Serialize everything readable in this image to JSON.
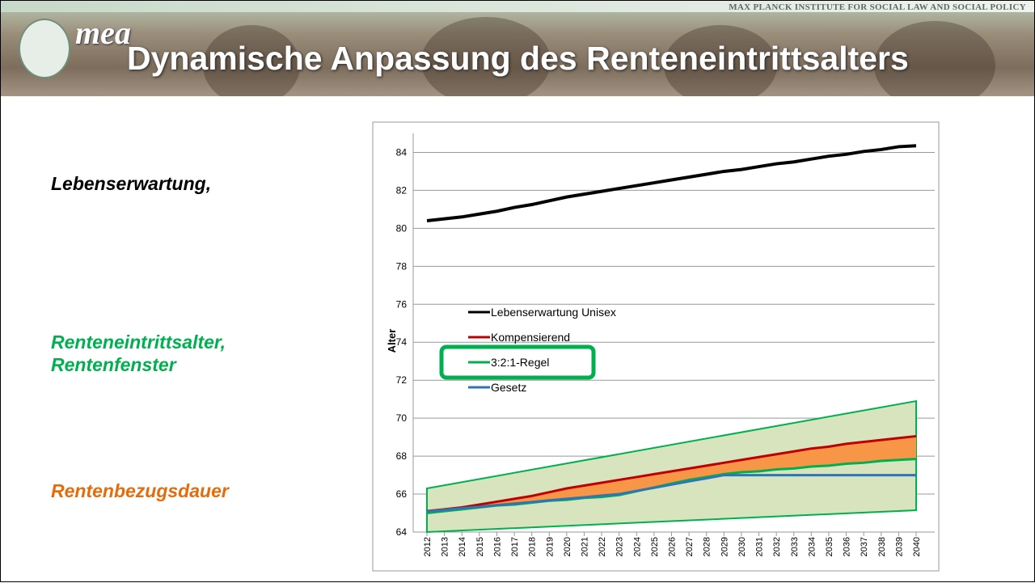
{
  "header": {
    "institute": "MAX PLANCK INSTITUTE FOR SOCIAL LAW AND SOCIAL POLICY",
    "logo": "mea",
    "title": "Dynamische Anpassung des Renteneintrittsalters"
  },
  "labels": [
    {
      "text": "Lebenserwartung,",
      "color": "#000000"
    },
    {
      "text": "Renteneintrittsalter,\nRentenfenster",
      "color": "#00b050"
    },
    {
      "text": "Rentenbezugsdauer",
      "color": "#e46c0a"
    }
  ],
  "chart_data": {
    "type": "line",
    "y_label": "Alter",
    "x": [
      2012,
      2013,
      2014,
      2015,
      2016,
      2017,
      2018,
      2019,
      2020,
      2021,
      2022,
      2023,
      2024,
      2025,
      2026,
      2027,
      2028,
      2029,
      2030,
      2031,
      2032,
      2033,
      2034,
      2035,
      2036,
      2037,
      2038,
      2039,
      2040
    ],
    "xticks": [
      2012,
      2013,
      2014,
      2015,
      2016,
      2017,
      2018,
      2019,
      2020,
      2021,
      2022,
      2023,
      2024,
      2025,
      2026,
      2027,
      2028,
      2029,
      2030,
      2031,
      2032,
      2033,
      2034,
      2035,
      2036,
      2037,
      2038,
      2039,
      2040
    ],
    "ylim": [
      64,
      85
    ],
    "yticks": [
      64,
      66,
      68,
      70,
      72,
      74,
      76,
      78,
      80,
      82,
      84
    ],
    "grid": true,
    "legend": "left",
    "series": [
      {
        "name": "Lebenserwartung Unisex",
        "color": "#000000",
        "values": [
          80.4,
          80.5,
          80.6,
          80.75,
          80.9,
          81.1,
          81.25,
          81.45,
          81.65,
          81.8,
          81.95,
          82.1,
          82.25,
          82.4,
          82.55,
          82.7,
          82.85,
          83.0,
          83.1,
          83.25,
          83.4,
          83.5,
          83.65,
          83.8,
          83.9,
          84.05,
          84.15,
          84.3,
          84.35
        ]
      },
      {
        "name": "Kompensierend",
        "color": "#c00000",
        "values": [
          65.1,
          65.2,
          65.3,
          65.45,
          65.6,
          65.75,
          65.9,
          66.1,
          66.3,
          66.45,
          66.6,
          66.75,
          66.9,
          67.05,
          67.2,
          67.35,
          67.5,
          67.65,
          67.8,
          67.95,
          68.1,
          68.25,
          68.4,
          68.5,
          68.65,
          68.75,
          68.85,
          68.95,
          69.05
        ]
      },
      {
        "name": "3:2:1-Regel",
        "color": "#00b050",
        "values": [
          65.0,
          65.1,
          65.2,
          65.3,
          65.4,
          65.45,
          65.55,
          65.65,
          65.7,
          65.8,
          65.85,
          65.95,
          66.15,
          66.35,
          66.55,
          66.75,
          66.9,
          67.05,
          67.15,
          67.2,
          67.3,
          67.35,
          67.45,
          67.5,
          67.6,
          67.65,
          67.75,
          67.8,
          67.85
        ]
      },
      {
        "name": "Gesetz",
        "color": "#2e75b6",
        "values": [
          65.08,
          65.17,
          65.25,
          65.33,
          65.42,
          65.5,
          65.58,
          65.67,
          65.75,
          65.83,
          65.92,
          66.0,
          66.17,
          66.33,
          66.5,
          66.67,
          66.83,
          67.0,
          67.0,
          67.0,
          67.0,
          67.0,
          67.0,
          67.0,
          67.0,
          67.0,
          67.0,
          67.0,
          67.0
        ]
      }
    ],
    "fill_between": {
      "series": [
        1,
        2
      ],
      "color": "#f79646"
    },
    "window": {
      "x": [
        2012,
        2040
      ],
      "lower": [
        64,
        65.15
      ],
      "upper": [
        66.3,
        70.9
      ],
      "color": "#d7e4bd",
      "edge_color": "#00b050"
    }
  }
}
